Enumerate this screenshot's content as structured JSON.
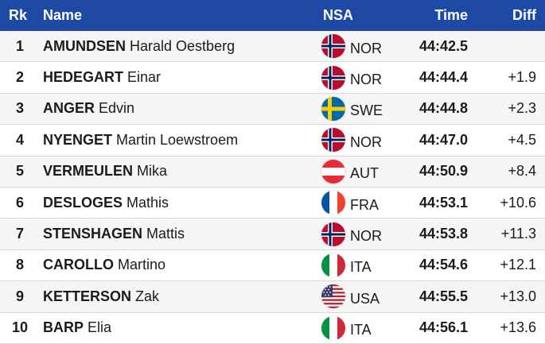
{
  "header": {
    "rank": "Rk",
    "name": "Name",
    "nsa": "NSA",
    "time": "Time",
    "diff": "Diff"
  },
  "rows": [
    {
      "rank": "1",
      "surname": "AMUNDSEN",
      "given": "Harald Oestberg",
      "nsa": "NOR",
      "flag": "norway-flag-icon",
      "time": "44:42.5",
      "diff": ""
    },
    {
      "rank": "2",
      "surname": "HEDEGART",
      "given": "Einar",
      "nsa": "NOR",
      "flag": "norway-flag-icon",
      "time": "44:44.4",
      "diff": "+1.9"
    },
    {
      "rank": "3",
      "surname": "ANGER",
      "given": "Edvin",
      "nsa": "SWE",
      "flag": "sweden-flag-icon",
      "time": "44:44.8",
      "diff": "+2.3"
    },
    {
      "rank": "4",
      "surname": "NYENGET",
      "given": "Martin Loewstroem",
      "nsa": "NOR",
      "flag": "norway-flag-icon",
      "time": "44:47.0",
      "diff": "+4.5"
    },
    {
      "rank": "5",
      "surname": "VERMEULEN",
      "given": "Mika",
      "nsa": "AUT",
      "flag": "austria-flag-icon",
      "time": "44:50.9",
      "diff": "+8.4"
    },
    {
      "rank": "6",
      "surname": "DESLOGES",
      "given": "Mathis",
      "nsa": "FRA",
      "flag": "france-flag-icon",
      "time": "44:53.1",
      "diff": "+10.6"
    },
    {
      "rank": "7",
      "surname": "STENSHAGEN",
      "given": "Mattis",
      "nsa": "NOR",
      "flag": "norway-flag-icon",
      "time": "44:53.8",
      "diff": "+11.3"
    },
    {
      "rank": "8",
      "surname": "CAROLLO",
      "given": "Martino",
      "nsa": "ITA",
      "flag": "italy-flag-icon",
      "time": "44:54.6",
      "diff": "+12.1"
    },
    {
      "rank": "9",
      "surname": "KETTERSON",
      "given": "Zak",
      "nsa": "USA",
      "flag": "usa-flag-icon",
      "time": "44:55.5",
      "diff": "+13.0"
    },
    {
      "rank": "10",
      "surname": "BARP",
      "given": "Elia",
      "nsa": "ITA",
      "flag": "italy-flag-icon",
      "time": "44:56.1",
      "diff": "+13.6"
    }
  ],
  "colors": {
    "header_bg": "#1e4aa6",
    "row_alt_bg": "#f5f5f5"
  }
}
